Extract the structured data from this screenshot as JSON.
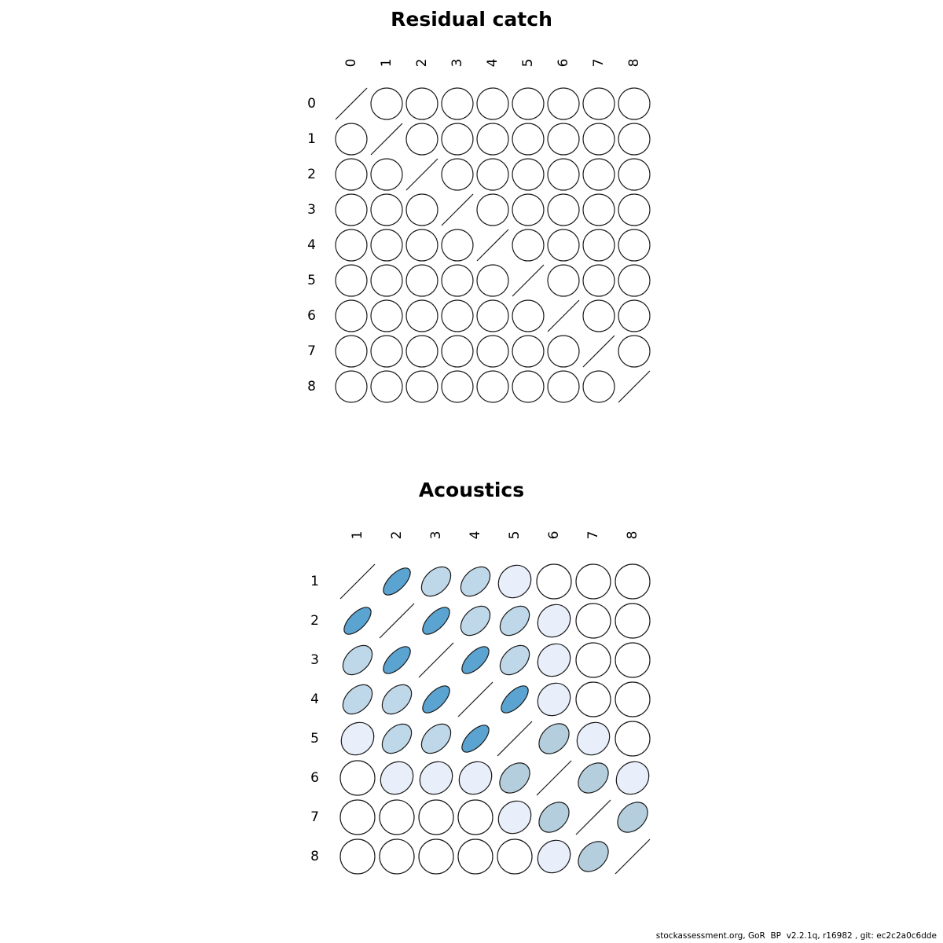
{
  "page": {
    "background": "#ffffff"
  },
  "footer": {
    "text": "stockassessment.org, GoR  BP  v2.2.1q, r16982 , git: ec2c2a0c6dde"
  },
  "palette": {
    "strong": "#5BA3D0",
    "moderate": "#BFD8E9",
    "moderate_gray": "#B5CEDD",
    "weak": "#E8EEFA",
    "none": "#FFFFFF",
    "stroke": "#1A1A1A"
  },
  "chart_data": [
    {
      "type": "heatmap",
      "subtype": "correlation-ellipse-matrix",
      "title": "Residual catch",
      "col_labels": [
        "0",
        "1",
        "2",
        "3",
        "4",
        "5",
        "6",
        "7",
        "8"
      ],
      "row_labels": [
        "0",
        "1",
        "2",
        "3",
        "4",
        "5",
        "6",
        "7",
        "8"
      ],
      "diagonal": "slash",
      "matrix": [
        [
          null,
          0,
          0,
          0,
          0,
          0,
          0,
          0,
          0
        ],
        [
          0,
          null,
          0,
          0,
          0,
          0,
          0,
          0,
          0
        ],
        [
          0,
          0,
          null,
          0,
          0,
          0,
          0,
          0,
          0
        ],
        [
          0,
          0,
          0,
          null,
          0,
          0,
          0,
          0,
          0
        ],
        [
          0,
          0,
          0,
          0,
          null,
          0,
          0,
          0,
          0
        ],
        [
          0,
          0,
          0,
          0,
          0,
          null,
          0,
          0,
          0
        ],
        [
          0,
          0,
          0,
          0,
          0,
          0,
          null,
          0,
          0
        ],
        [
          0,
          0,
          0,
          0,
          0,
          0,
          0,
          null,
          0
        ],
        [
          0,
          0,
          0,
          0,
          0,
          0,
          0,
          0,
          null
        ]
      ]
    },
    {
      "type": "heatmap",
      "subtype": "correlation-ellipse-matrix",
      "title": "Acoustics",
      "col_labels": [
        "1",
        "2",
        "3",
        "4",
        "5",
        "6",
        "7",
        "8"
      ],
      "row_labels": [
        "1",
        "2",
        "3",
        "4",
        "5",
        "6",
        "7",
        "8"
      ],
      "diagonal": "slash",
      "matrix": [
        [
          null,
          0.65,
          0.4,
          0.4,
          0.13,
          0,
          0,
          0
        ],
        [
          0.65,
          null,
          0.65,
          0.4,
          0.4,
          0.13,
          0,
          0
        ],
        [
          0.4,
          0.65,
          null,
          0.65,
          0.4,
          0.13,
          0,
          0
        ],
        [
          0.4,
          0.4,
          0.65,
          null,
          0.65,
          0.13,
          0,
          0
        ],
        [
          0.13,
          0.4,
          0.4,
          0.65,
          null,
          0.33,
          0.13,
          0
        ],
        [
          0,
          0.13,
          0.13,
          0.13,
          0.33,
          null,
          0.33,
          0.13
        ],
        [
          0,
          0,
          0,
          0,
          0.13,
          0.33,
          null,
          0.33
        ],
        [
          0,
          0,
          0,
          0,
          0,
          0.13,
          0.33,
          null
        ]
      ]
    }
  ]
}
